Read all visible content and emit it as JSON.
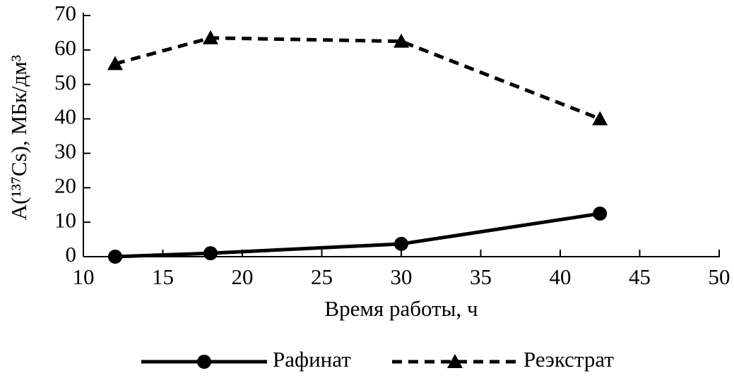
{
  "chart_data": {
    "type": "line",
    "x_label": "Время работы, ч",
    "y_label": "A(¹³⁷Cs), МБк/дм³",
    "x": [
      12,
      18,
      30,
      42.5
    ],
    "series": [
      {
        "name": "Рафинат",
        "color": "#000000",
        "line_style": "solid",
        "marker": "circle",
        "values": [
          0,
          1,
          3.7,
          12.5
        ]
      },
      {
        "name": "Реэкстрат",
        "color": "#000000",
        "line_style": "dashed",
        "marker": "triangle",
        "values": [
          56,
          63.5,
          62.5,
          40
        ]
      }
    ],
    "xlim": [
      10,
      50
    ],
    "xticks": [
      10,
      15,
      20,
      25,
      30,
      35,
      40,
      45,
      50
    ],
    "ylim": [
      0,
      70
    ],
    "yticks": [
      0,
      10,
      20,
      30,
      40,
      50,
      60,
      70
    ],
    "legend": "bottom",
    "grid": false
  }
}
